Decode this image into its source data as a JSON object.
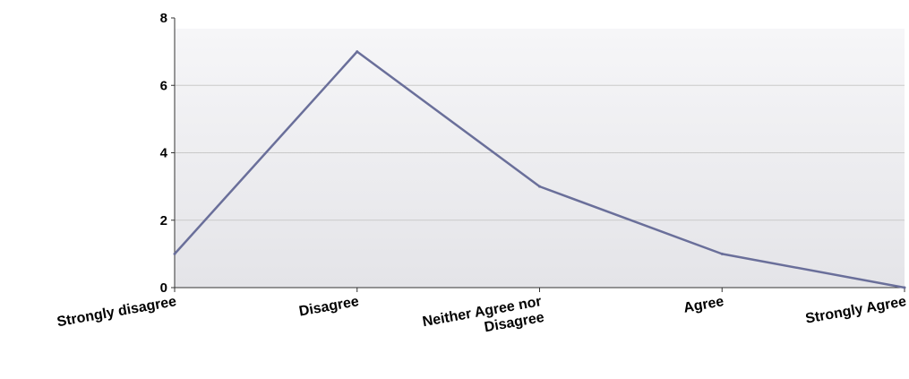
{
  "chart_data": {
    "type": "line",
    "categories": [
      "Strongly disagree",
      "Disagree",
      "Neither Agree nor Disagree",
      "Agree",
      "Strongly Agree"
    ],
    "category_lines": [
      [
        "Strongly disagree"
      ],
      [
        "Disagree"
      ],
      [
        "Neither Agree nor",
        "Disagree"
      ],
      [
        "Agree"
      ],
      [
        "Strongly Agree"
      ]
    ],
    "values": [
      1,
      7,
      3,
      1,
      0
    ],
    "yticks": [
      0,
      2,
      4,
      6,
      8
    ],
    "ylim": [
      0,
      8
    ],
    "grid": true,
    "legend": "none",
    "title": "",
    "xlabel": "",
    "ylabel": "",
    "colors": {
      "line": "#6a6f9a",
      "grid": "#c9c9c9",
      "plot_top": "#f6f6f8",
      "plot_bottom": "#e4e4e8",
      "axis": "#333333"
    }
  }
}
